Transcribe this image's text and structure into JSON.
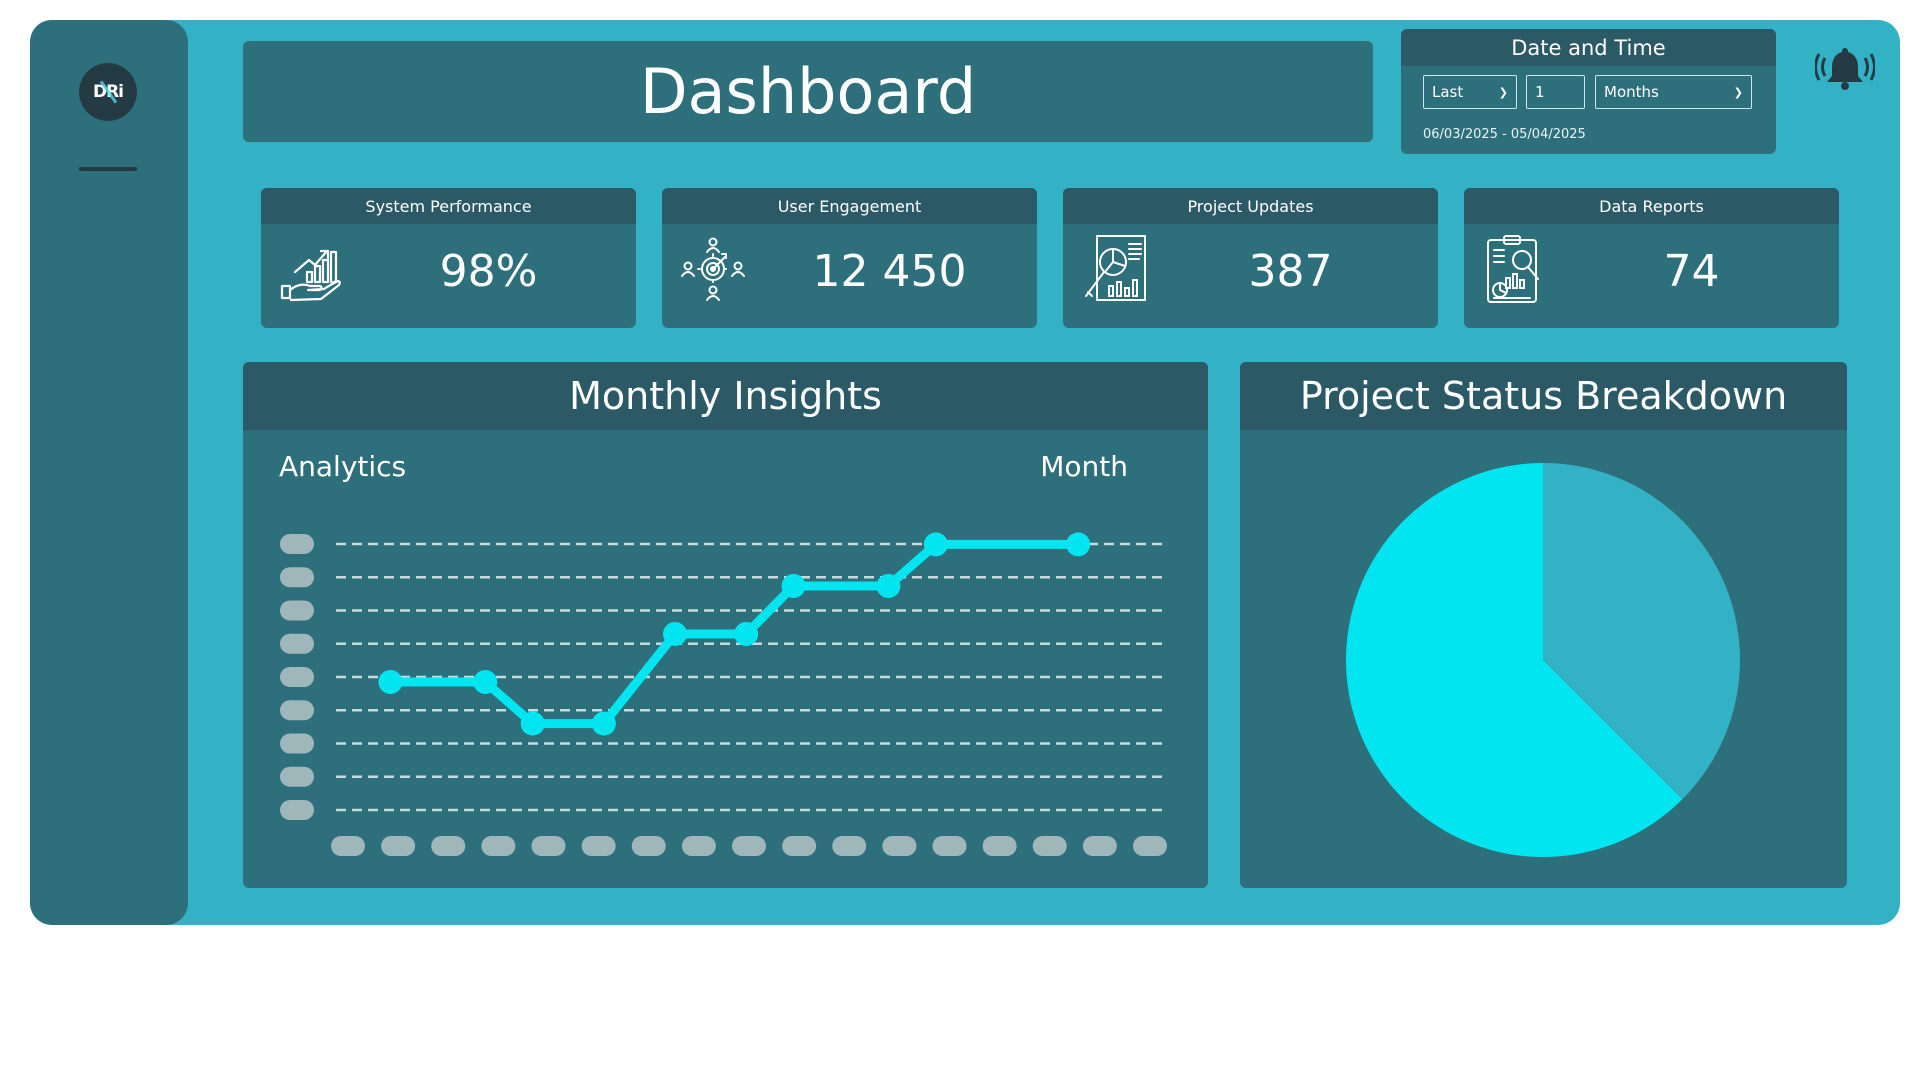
{
  "sidebar": {
    "logo_text": "DRi"
  },
  "header": {
    "title": "Dashboard"
  },
  "date_time": {
    "heading": "Date and Time",
    "period_select": "Last",
    "count_input": "1",
    "unit_select": "Months",
    "range_text": "06/03/2025 - 05/04/2025"
  },
  "kpis": [
    {
      "title": "System Performance",
      "value": "98%",
      "icon": "growth-hand-icon"
    },
    {
      "title": "User Engagement",
      "value": "12 450",
      "icon": "target-network-icon"
    },
    {
      "title": "Project Updates",
      "value": "387",
      "icon": "report-magnifier-icon"
    },
    {
      "title": "Data Reports",
      "value": "74",
      "icon": "clipboard-analysis-icon"
    }
  ],
  "line_panel": {
    "title": "Monthly Insights",
    "left_label": "Analytics",
    "right_label": "Month"
  },
  "pie_panel": {
    "title": "Project Status Breakdown"
  },
  "colors": {
    "accent": "#00e5ef",
    "panel": "#2e6f7c",
    "panel_header": "#2b5966",
    "frame": "#33b2c6",
    "placeholder": "#9fb6bb"
  },
  "chart_data": [
    {
      "type": "line",
      "note_axes": "tick labels are rendered as blank placeholder pills",
      "gridlines": 9,
      "x_ticks": 17,
      "series": [
        {
          "values": [
            4,
            4,
            2.7,
            2.7,
            5.5,
            5.5,
            7,
            7,
            8.3,
            8.3
          ]
        }
      ],
      "x_positions": [
        1,
        3,
        4,
        5.5,
        7,
        8.5,
        9.5,
        11.5,
        12.5,
        15.5
      ],
      "xlim": [
        0,
        17.5
      ],
      "ylim": [
        0,
        9
      ]
    },
    {
      "type": "pie",
      "slices": [
        {
          "value": 0.375,
          "color": "#33b2c6"
        },
        {
          "value": 0.625,
          "color": "#00e5ef"
        }
      ]
    }
  ]
}
